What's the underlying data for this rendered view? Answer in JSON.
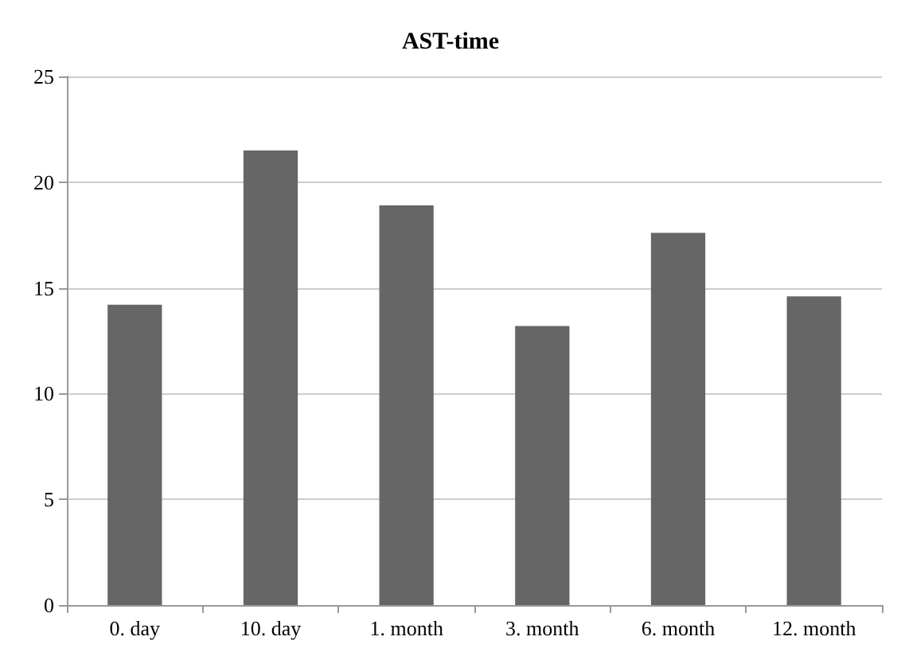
{
  "chart_data": {
    "type": "bar",
    "title": "AST-time",
    "categories": [
      "0. day",
      "10. day",
      "1. month",
      "3. month",
      "6. month",
      "12. month"
    ],
    "values": [
      14.2,
      21.5,
      18.9,
      13.2,
      17.6,
      14.6
    ],
    "color": "#666666",
    "ylim": [
      0,
      25
    ],
    "yticks": [
      0,
      5,
      10,
      15,
      20,
      25
    ],
    "grid": "y"
  }
}
